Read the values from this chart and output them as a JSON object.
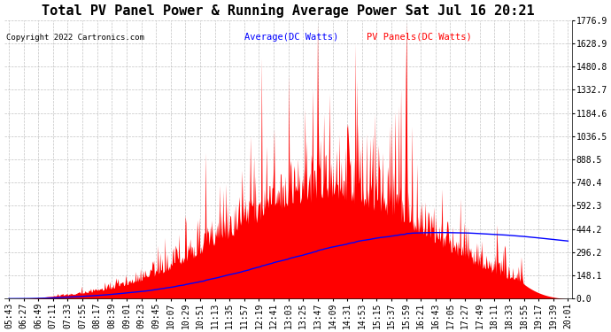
{
  "title": "Total PV Panel Power & Running Average Power Sat Jul 16 20:21",
  "copyright": "Copyright 2022 Cartronics.com",
  "legend_avg": "Average(DC Watts)",
  "legend_pv": "PV Panels(DC Watts)",
  "color_avg": "#0000ff",
  "color_pv": "#ff0000",
  "background_color": "#ffffff",
  "grid_color": "#aaaaaa",
  "ylim": [
    0,
    1776.9
  ],
  "yticks": [
    0.0,
    148.1,
    296.2,
    444.2,
    592.3,
    740.4,
    888.5,
    1036.5,
    1184.6,
    1332.7,
    1480.8,
    1628.9,
    1776.9
  ],
  "title_fontsize": 11,
  "tick_fontsize": 7,
  "x_labels": [
    "05:43",
    "06:27",
    "06:49",
    "07:11",
    "07:33",
    "07:55",
    "08:17",
    "08:39",
    "09:01",
    "09:23",
    "09:45",
    "10:07",
    "10:29",
    "10:51",
    "11:13",
    "11:35",
    "11:57",
    "12:19",
    "12:41",
    "13:03",
    "13:25",
    "13:47",
    "14:09",
    "14:31",
    "14:53",
    "15:15",
    "15:37",
    "15:59",
    "16:21",
    "16:43",
    "17:05",
    "17:27",
    "17:49",
    "18:11",
    "18:33",
    "18:55",
    "19:17",
    "19:39",
    "20:01"
  ]
}
